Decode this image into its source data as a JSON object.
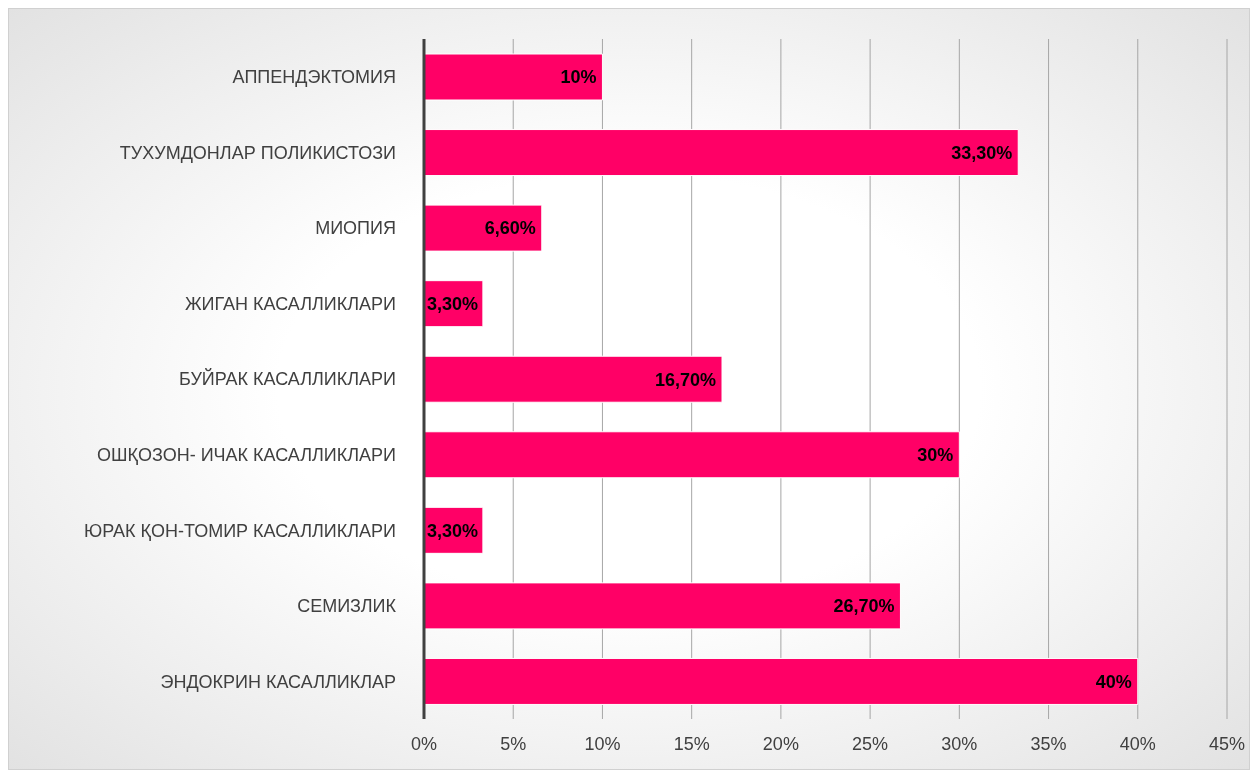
{
  "chart_data": {
    "type": "bar",
    "orientation": "horizontal",
    "categories": [
      "АППЕНДЭКТОМИЯ",
      "ТУХУМДОНЛАР ПОЛИКИСТОЗИ",
      "МИОПИЯ",
      "ЖИГАН КАСАЛЛИКЛАРИ",
      "БУЙРАК КАСАЛЛИКЛАРИ",
      "ОШҚОЗОН- ИЧАК КАСАЛЛИКЛАРИ",
      "ЮРАК ҚОН-ТОМИР КАСАЛЛИКЛАРИ",
      "СЕМИЗЛИК",
      "ЭНДОКРИН КАСАЛЛИКЛАР"
    ],
    "values": [
      10,
      33.3,
      6.6,
      3.3,
      16.7,
      30,
      3.3,
      26.7,
      40
    ],
    "value_labels": [
      "10%",
      "33,30%",
      "6,60%",
      "3,30%",
      "16,70%",
      "30%",
      "3,30%",
      "26,70%",
      "40%"
    ],
    "color": "#ff0066",
    "xlim": [
      0,
      45
    ],
    "xticks": [
      {
        "value": 0,
        "label": "0%"
      },
      {
        "value": 5,
        "label": "5%"
      },
      {
        "value": 10,
        "label": "10%"
      },
      {
        "value": 15,
        "label": "15%"
      },
      {
        "value": 20,
        "label": "20%"
      },
      {
        "value": 25,
        "label": "25%"
      },
      {
        "value": 30,
        "label": "30%"
      },
      {
        "value": 35,
        "label": "35%"
      },
      {
        "value": 40,
        "label": "40%"
      },
      {
        "value": 45,
        "label": "45%"
      }
    ],
    "grid": "x",
    "legend": false
  }
}
